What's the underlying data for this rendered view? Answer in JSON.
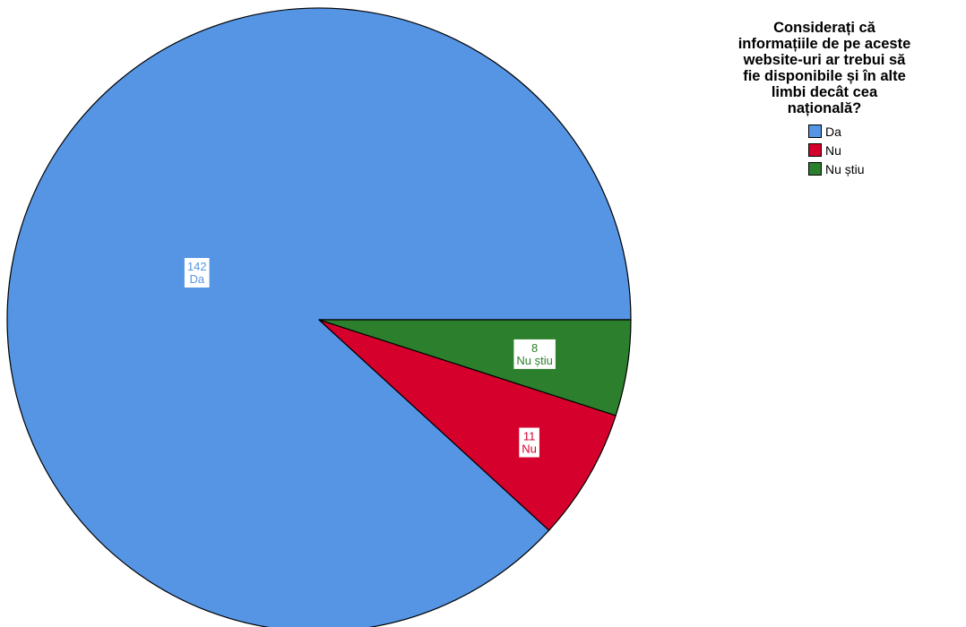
{
  "chart_data": {
    "type": "pie",
    "title": "Considerați că informațiile de pe aceste website-uri ar trebui să fie disponibile și în alte limbi decât cea națională?",
    "title_lines": [
      "Considerați că",
      "informațiile de pe aceste",
      "website-uri ar trebui să",
      "fie disponibile și în alte",
      "limbi decât cea",
      "națională?"
    ],
    "legend_position": "top-right",
    "slices": [
      {
        "label": "Da",
        "value": 142,
        "color": "#5595e3"
      },
      {
        "label": "Nu",
        "value": 11,
        "color": "#d6002d"
      },
      {
        "label": "Nu știu",
        "value": 8,
        "color": "#2c7f2c"
      }
    ]
  }
}
